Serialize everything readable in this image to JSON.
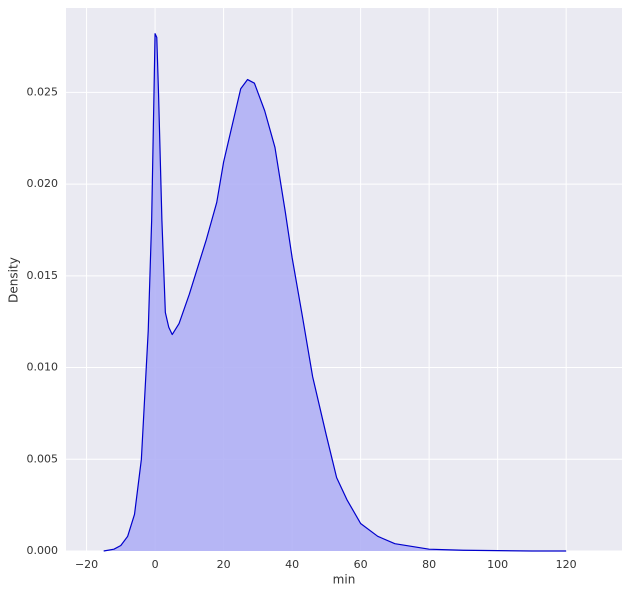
{
  "chart_data": {
    "type": "area",
    "x_label": "min",
    "y_label": "Density",
    "x": [
      -15,
      -12,
      -10,
      -8,
      -6,
      -4,
      -2,
      -1,
      0,
      0.5,
      1,
      2,
      3,
      4,
      5,
      7,
      10,
      15,
      18,
      20,
      22,
      25,
      27,
      29,
      32,
      35,
      38,
      40,
      43,
      46,
      50,
      53,
      56,
      60,
      65,
      70,
      80,
      90,
      100,
      110,
      120
    ],
    "values": [
      0.0,
      0.0001,
      0.0003,
      0.0008,
      0.002,
      0.005,
      0.012,
      0.018,
      0.0282,
      0.028,
      0.025,
      0.018,
      0.013,
      0.0122,
      0.0118,
      0.0124,
      0.014,
      0.017,
      0.019,
      0.0212,
      0.0228,
      0.0252,
      0.0257,
      0.0255,
      0.024,
      0.022,
      0.0185,
      0.016,
      0.0128,
      0.0095,
      0.0063,
      0.004,
      0.0028,
      0.0015,
      0.0008,
      0.0004,
      0.0001,
      4e-05,
      2e-05,
      0.0,
      0.0
    ],
    "color": "#0000cc",
    "fill_color": "#b0b0f5",
    "xlim": [
      -26,
      136.3
    ],
    "ylim": [
      0,
      0.0296
    ],
    "xticks": [
      {
        "value": -20,
        "label": "−20"
      },
      0,
      20,
      40,
      60,
      80,
      100,
      120
    ],
    "yticks": [
      {
        "value": 0,
        "label": "0.000"
      },
      0.005,
      {
        "value": 0.01,
        "label": "0.010"
      },
      0.015,
      {
        "value": 0.02,
        "label": "0.020"
      },
      0.025
    ],
    "grid": true
  }
}
